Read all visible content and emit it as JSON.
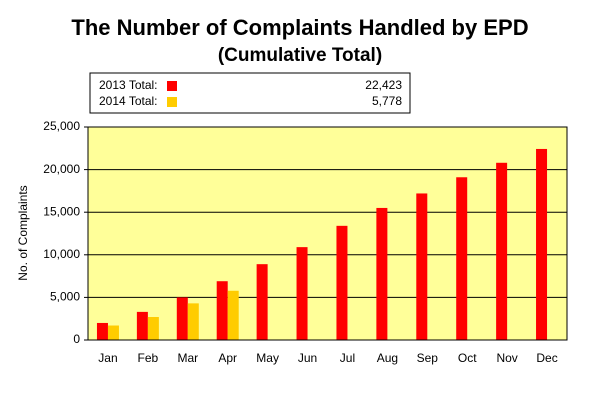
{
  "chart_data": {
    "type": "bar",
    "title": "The Number of Complaints Handled by EPD",
    "subtitle": "(Cumulative Total)",
    "y_label": "No. of Complaints",
    "categories": [
      "Jan",
      "Feb",
      "Mar",
      "Apr",
      "May",
      "Jun",
      "Jul",
      "Aug",
      "Sep",
      "Oct",
      "Nov",
      "Dec"
    ],
    "series": [
      {
        "name": "2013 Total:",
        "color": "#ff0000",
        "legend_value": "22,423",
        "values": [
          2000,
          3300,
          5000,
          6900,
          8900,
          10900,
          13400,
          15500,
          17200,
          19100,
          20800,
          22423
        ]
      },
      {
        "name": "2014 Total:",
        "color": "#ffcc00",
        "legend_value": "5,778",
        "values": [
          1700,
          2700,
          4300,
          5778,
          null,
          null,
          null,
          null,
          null,
          null,
          null,
          null
        ]
      }
    ],
    "ylim": [
      0,
      25000
    ],
    "yticks": [
      0,
      {
        "value": 5000,
        "label": "5,000"
      },
      {
        "value": 10000,
        "label": "10,000"
      },
      {
        "value": 15000,
        "label": "15,000"
      },
      {
        "value": 20000,
        "label": "20,000"
      },
      {
        "value": 25000,
        "label": "25,000"
      }
    ],
    "grid": true,
    "plot_background": "#ffff99"
  }
}
